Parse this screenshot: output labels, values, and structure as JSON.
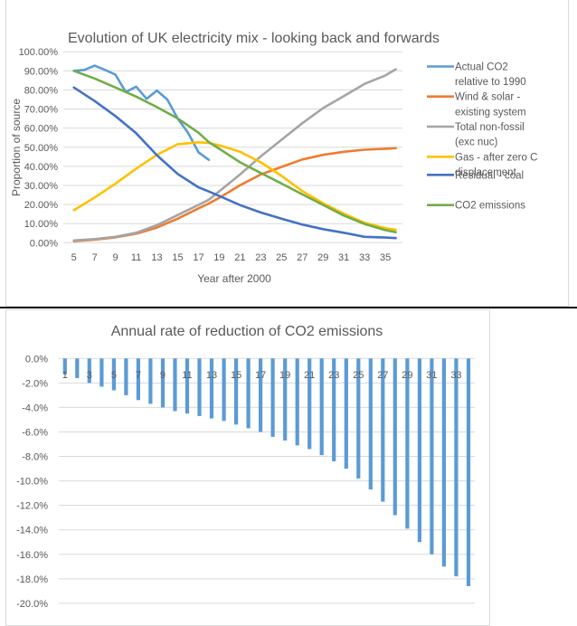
{
  "chart_data": [
    {
      "type": "line",
      "title": "Evolution of UK electricity mix - looking back and forwards",
      "xlabel": "Year after 2000",
      "ylabel": "Proportion of source",
      "ylim": [
        0,
        100
      ],
      "xlim": [
        5,
        36
      ],
      "yticks": [
        "0.00%",
        "10.00%",
        "20.00%",
        "30.00%",
        "40.00%",
        "50.00%",
        "60.00%",
        "70.00%",
        "80.00%",
        "90.00%",
        "100.00%"
      ],
      "xticks": [
        "5",
        "7",
        "9",
        "11",
        "13",
        "15",
        "17",
        "19",
        "21",
        "23",
        "25",
        "27",
        "29",
        "31",
        "33",
        "35"
      ],
      "grid": true,
      "legend_position": "right",
      "series": [
        {
          "name": "Actual CO2 relative to 1990",
          "legend_lines": [
            "Actual CO2",
            "relative to 1990"
          ],
          "color": "#5B9BD5",
          "x": [
            5,
            6,
            7,
            8,
            9,
            10,
            11,
            12,
            13,
            14,
            15,
            16,
            17,
            18
          ],
          "values": [
            90.0,
            90.5,
            92.7,
            90.5,
            88.0,
            78.9,
            81.7,
            75.3,
            79.7,
            75.0,
            65.0,
            57.5,
            47.3,
            43.4
          ]
        },
        {
          "name": "Wind & solar - existing system",
          "legend_lines": [
            "Wind & solar -",
            "existing system"
          ],
          "color": "#ED7D31",
          "x": [
            5,
            7,
            9,
            11,
            13,
            15,
            17,
            18,
            19,
            21,
            23,
            25,
            27,
            29,
            31,
            33,
            35,
            36
          ],
          "values": [
            0.8,
            1.6,
            2.8,
            4.7,
            7.9,
            12.6,
            18.0,
            20.5,
            23.5,
            30.1,
            35.7,
            39.7,
            43.6,
            46.0,
            47.6,
            48.7,
            49.2,
            49.5
          ]
        },
        {
          "name": "Total non-fossil (exc nuc)",
          "legend_lines": [
            "Total non-fossil",
            "(exc nuc)"
          ],
          "color": "#A5A5A5",
          "x": [
            5,
            7,
            9,
            11,
            13,
            15,
            17,
            18,
            19,
            21,
            23,
            25,
            27,
            29,
            31,
            33,
            35,
            36
          ],
          "values": [
            1.2,
            1.9,
            3.1,
            5.2,
            9.2,
            14.5,
            19.8,
            22.5,
            26.9,
            35.7,
            45.2,
            53.9,
            62.6,
            70.5,
            76.8,
            83.2,
            87.6,
            90.8
          ]
        },
        {
          "name": "Gas - after zero C displacement",
          "legend_lines": [
            "Gas - after zero C",
            "displacement"
          ],
          "color": "#FFC000",
          "x": [
            5,
            7,
            9,
            11,
            13,
            15,
            17,
            18,
            19,
            21,
            23,
            25,
            27,
            29,
            31,
            33,
            35,
            36
          ],
          "values": [
            17.0,
            23.7,
            30.9,
            38.8,
            46.0,
            51.6,
            52.6,
            52.2,
            51.0,
            47.6,
            42.1,
            35.0,
            27.0,
            20.7,
            15.2,
            10.4,
            7.6,
            6.8
          ]
        },
        {
          "name": "Residual - coal",
          "legend_lines": [
            "Residual - coal"
          ],
          "color": "#4472C4",
          "x": [
            5,
            7,
            9,
            11,
            13,
            15,
            17,
            18,
            19,
            21,
            23,
            25,
            27,
            29,
            31,
            33,
            35,
            36
          ],
          "values": [
            81.3,
            74.2,
            66.3,
            57.3,
            45.8,
            36.0,
            29.0,
            26.8,
            24.5,
            19.7,
            15.8,
            12.6,
            9.5,
            7.1,
            5.2,
            3.1,
            2.7,
            2.4
          ]
        },
        {
          "name": "CO2 emissions",
          "legend_lines": [
            "CO2 emissions"
          ],
          "color": "#70AD47",
          "x": [
            5,
            7,
            9,
            11,
            13,
            15,
            17,
            18,
            19,
            21,
            23,
            25,
            27,
            29,
            31,
            33,
            35,
            36
          ],
          "values": [
            90.0,
            86.0,
            81.3,
            76.5,
            71.0,
            65.1,
            57.6,
            52.7,
            49.2,
            42.1,
            36.5,
            31.0,
            25.3,
            19.8,
            14.2,
            9.8,
            6.6,
            5.5
          ]
        }
      ]
    },
    {
      "type": "bar",
      "title": "Annual rate of reduction of CO2 emissions",
      "xlabel": "",
      "ylabel": "",
      "ylim": [
        -20,
        0
      ],
      "yticks": [
        "0.0%",
        "-2.0%",
        "-4.0%",
        "-6.0%",
        "-8.0%",
        "-10.0%",
        "-12.0%",
        "-14.0%",
        "-16.0%",
        "-18.0%",
        "-20.0%"
      ],
      "grid": true,
      "color": "#5B9BD5",
      "categories": [
        "1",
        "2",
        "3",
        "4",
        "5",
        "6",
        "7",
        "8",
        "9",
        "10",
        "11",
        "12",
        "13",
        "14",
        "15",
        "16",
        "17",
        "18",
        "19",
        "20",
        "21",
        "22",
        "23",
        "24",
        "25",
        "26",
        "27",
        "28",
        "29",
        "30",
        "31",
        "32",
        "33",
        "34"
      ],
      "category_labels_shown": [
        "1",
        "3",
        "5",
        "7",
        "9",
        "11",
        "13",
        "15",
        "17",
        "19",
        "21",
        "23",
        "25",
        "27",
        "29",
        "31",
        "33"
      ],
      "values": [
        -1.3,
        -1.6,
        -2.0,
        -2.3,
        -2.6,
        -3.0,
        -3.4,
        -3.7,
        -4.0,
        -4.3,
        -4.5,
        -4.7,
        -4.9,
        -5.1,
        -5.4,
        -5.7,
        -6.0,
        -6.4,
        -6.7,
        -7.1,
        -7.4,
        -7.9,
        -8.4,
        -9.0,
        -9.8,
        -10.7,
        -11.7,
        -12.8,
        -13.9,
        -15.0,
        -16.0,
        -17.0,
        -17.8,
        -18.6
      ]
    }
  ]
}
